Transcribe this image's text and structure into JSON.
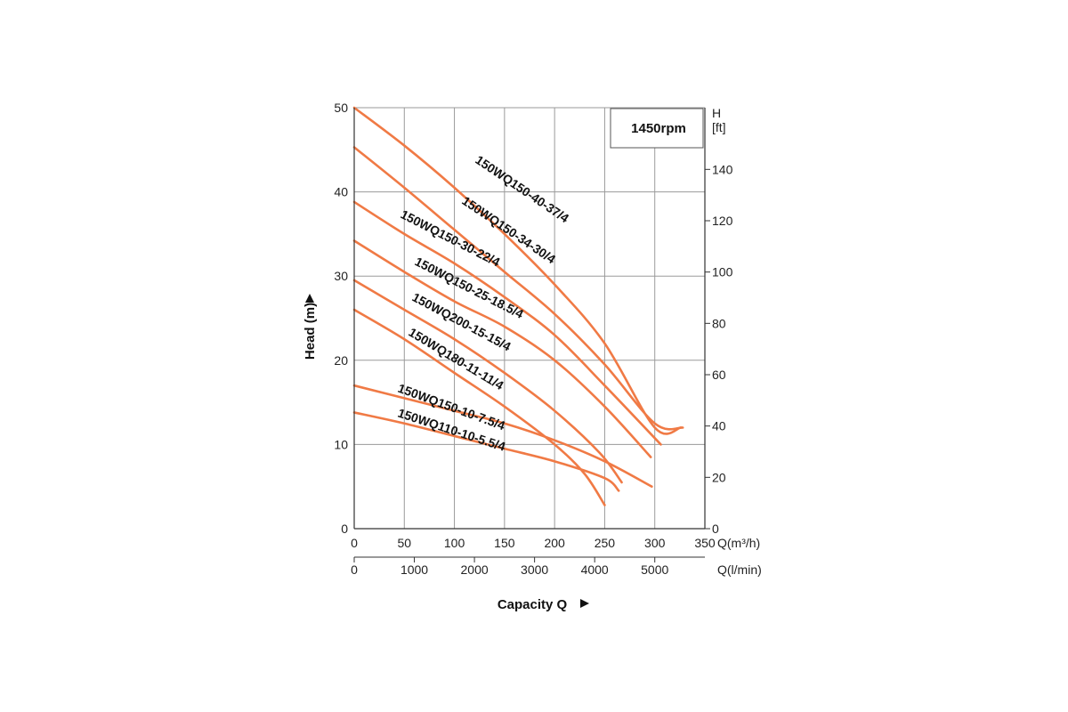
{
  "chart_data": {
    "type": "line",
    "title": "",
    "speed_label": "1450rpm",
    "xlabel": "Capacity Q",
    "x_unit_label": "Q(m³/h)",
    "x2_unit_label": "Q(l/min)",
    "ylabel": "Head (m)",
    "y2_unit_label_line1": "H",
    "y2_unit_label_line2": "[ft]",
    "xlim": [
      0,
      350
    ],
    "ylim": [
      0,
      50
    ],
    "x_ticks": [
      "0",
      "50",
      "100",
      "150",
      "200",
      "250",
      "300",
      "350"
    ],
    "x2_ticks": [
      "0",
      "1000",
      "2000",
      "3000",
      "4000",
      "5000"
    ],
    "y_ticks": [
      "0",
      "10",
      "20",
      "30",
      "40",
      "50"
    ],
    "y2_ticks": [
      "0",
      "20",
      "40",
      "60",
      "80",
      "100",
      "120",
      "140"
    ],
    "grid": true,
    "curve_color": "#f07a45",
    "series": [
      {
        "name": "150WQ150-40-37/4",
        "x": [
          0,
          50,
          100,
          150,
          200,
          250,
          300,
          326
        ],
        "y": [
          50,
          45.5,
          40.5,
          35,
          29,
          22,
          12,
          12
        ]
      },
      {
        "name": "150WQ150-34-30/4",
        "x": [
          0,
          50,
          100,
          150,
          200,
          250,
          300,
          328
        ],
        "y": [
          45.3,
          40.5,
          35.5,
          30.5,
          25.5,
          19.5,
          12.5,
          12
        ]
      },
      {
        "name": "150WQ150-30-22/4",
        "x": [
          0,
          50,
          100,
          150,
          200,
          250,
          306
        ],
        "y": [
          38.8,
          35,
          31.5,
          27.5,
          23,
          17,
          10
        ]
      },
      {
        "name": "150WQ150-25-18.5/4",
        "x": [
          0,
          50,
          100,
          150,
          200,
          250,
          296
        ],
        "y": [
          34.2,
          30.5,
          27,
          24,
          20,
          14.5,
          8.5
        ]
      },
      {
        "name": "150WQ200-15-15/4",
        "x": [
          0,
          50,
          100,
          150,
          200,
          245,
          267
        ],
        "y": [
          29.5,
          26,
          22.5,
          18.5,
          14,
          9,
          5.5
        ]
      },
      {
        "name": "150WQ180-11-11/4",
        "x": [
          0,
          50,
          100,
          150,
          200,
          230,
          250
        ],
        "y": [
          26,
          22.5,
          18.5,
          14.5,
          10,
          6.5,
          2.8
        ]
      },
      {
        "name": "150WQ150-10-7.5/4",
        "x": [
          0,
          50,
          100,
          150,
          200,
          250,
          297
        ],
        "y": [
          17,
          15.5,
          14,
          12.5,
          10.5,
          8,
          5
        ]
      },
      {
        "name": "150WQ110-10-5.5/4",
        "x": [
          0,
          50,
          100,
          150,
          200,
          250,
          264
        ],
        "y": [
          13.8,
          12.5,
          11,
          9.5,
          8,
          6,
          4.5
        ]
      }
    ]
  }
}
